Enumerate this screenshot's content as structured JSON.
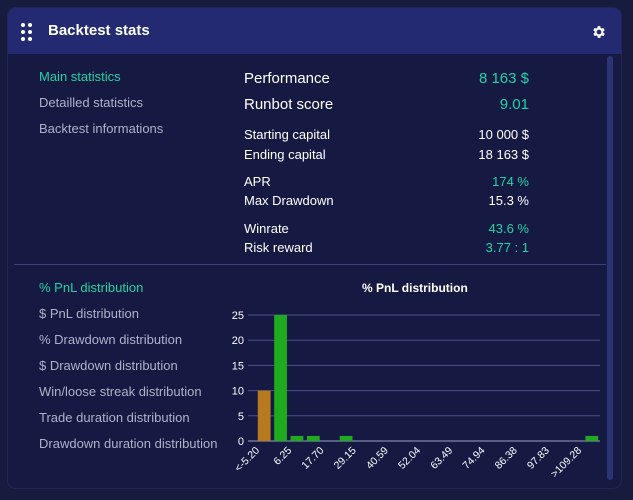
{
  "header": {
    "title": "Backtest stats"
  },
  "sidebar_top": [
    {
      "label": "Main statistics",
      "active": true
    },
    {
      "label": "Detailled statistics",
      "active": false
    },
    {
      "label": "Backtest informations",
      "active": false
    }
  ],
  "stats": {
    "performance": {
      "label": "Performance",
      "value": "8 163 $"
    },
    "runbot_score": {
      "label": "Runbot score",
      "value": "9.01"
    },
    "starting_capital": {
      "label": "Starting capital",
      "value": "10 000 $"
    },
    "ending_capital": {
      "label": "Ending capital",
      "value": "18 163 $"
    },
    "apr": {
      "label": "APR",
      "value": "174 %"
    },
    "max_drawdown": {
      "label": "Max Drawdown",
      "value": "15.3 %"
    },
    "winrate": {
      "label": "Winrate",
      "value": "43.6 %"
    },
    "risk_reward": {
      "label": "Risk reward",
      "value": "3.77 : 1"
    }
  },
  "sidebar_bottom": [
    {
      "label": "% PnL distribution",
      "active": true
    },
    {
      "label": "$ PnL distribution",
      "active": false
    },
    {
      "label": "% Drawdown distribution",
      "active": false
    },
    {
      "label": "$ Drawdown distribution",
      "active": false
    },
    {
      "label": "Win/loose streak distribution",
      "active": false
    },
    {
      "label": "Trade duration distribution",
      "active": false
    },
    {
      "label": "Drawdown duration distribution",
      "active": false
    }
  ],
  "colors": {
    "accent": "#1fd3a2",
    "loss_bar": "#b87a1e",
    "win_bar": "#1faa1f",
    "header": "#232a72"
  },
  "chart_data": {
    "type": "bar",
    "title": "% PnL distribution",
    "ylim": [
      0,
      25
    ],
    "yticks": [
      0,
      5,
      10,
      15,
      20,
      25
    ],
    "tick_labels": [
      "<-5.20",
      "6.25",
      "17.70",
      "29.15",
      "40.59",
      "52.04",
      "63.49",
      "74.94",
      "86.38",
      "97.83",
      ">109.28"
    ],
    "bins": 21,
    "values": [
      10,
      25,
      1,
      1,
      0,
      1,
      0,
      0,
      0,
      0,
      0,
      0,
      0,
      0,
      0,
      0,
      0,
      0,
      0,
      0,
      1
    ],
    "bar_colors": [
      "loss",
      "win",
      "win",
      "win",
      "win",
      "win",
      "win",
      "win",
      "win",
      "win",
      "win",
      "win",
      "win",
      "win",
      "win",
      "win",
      "win",
      "win",
      "win",
      "win",
      "win"
    ],
    "grid": true
  }
}
